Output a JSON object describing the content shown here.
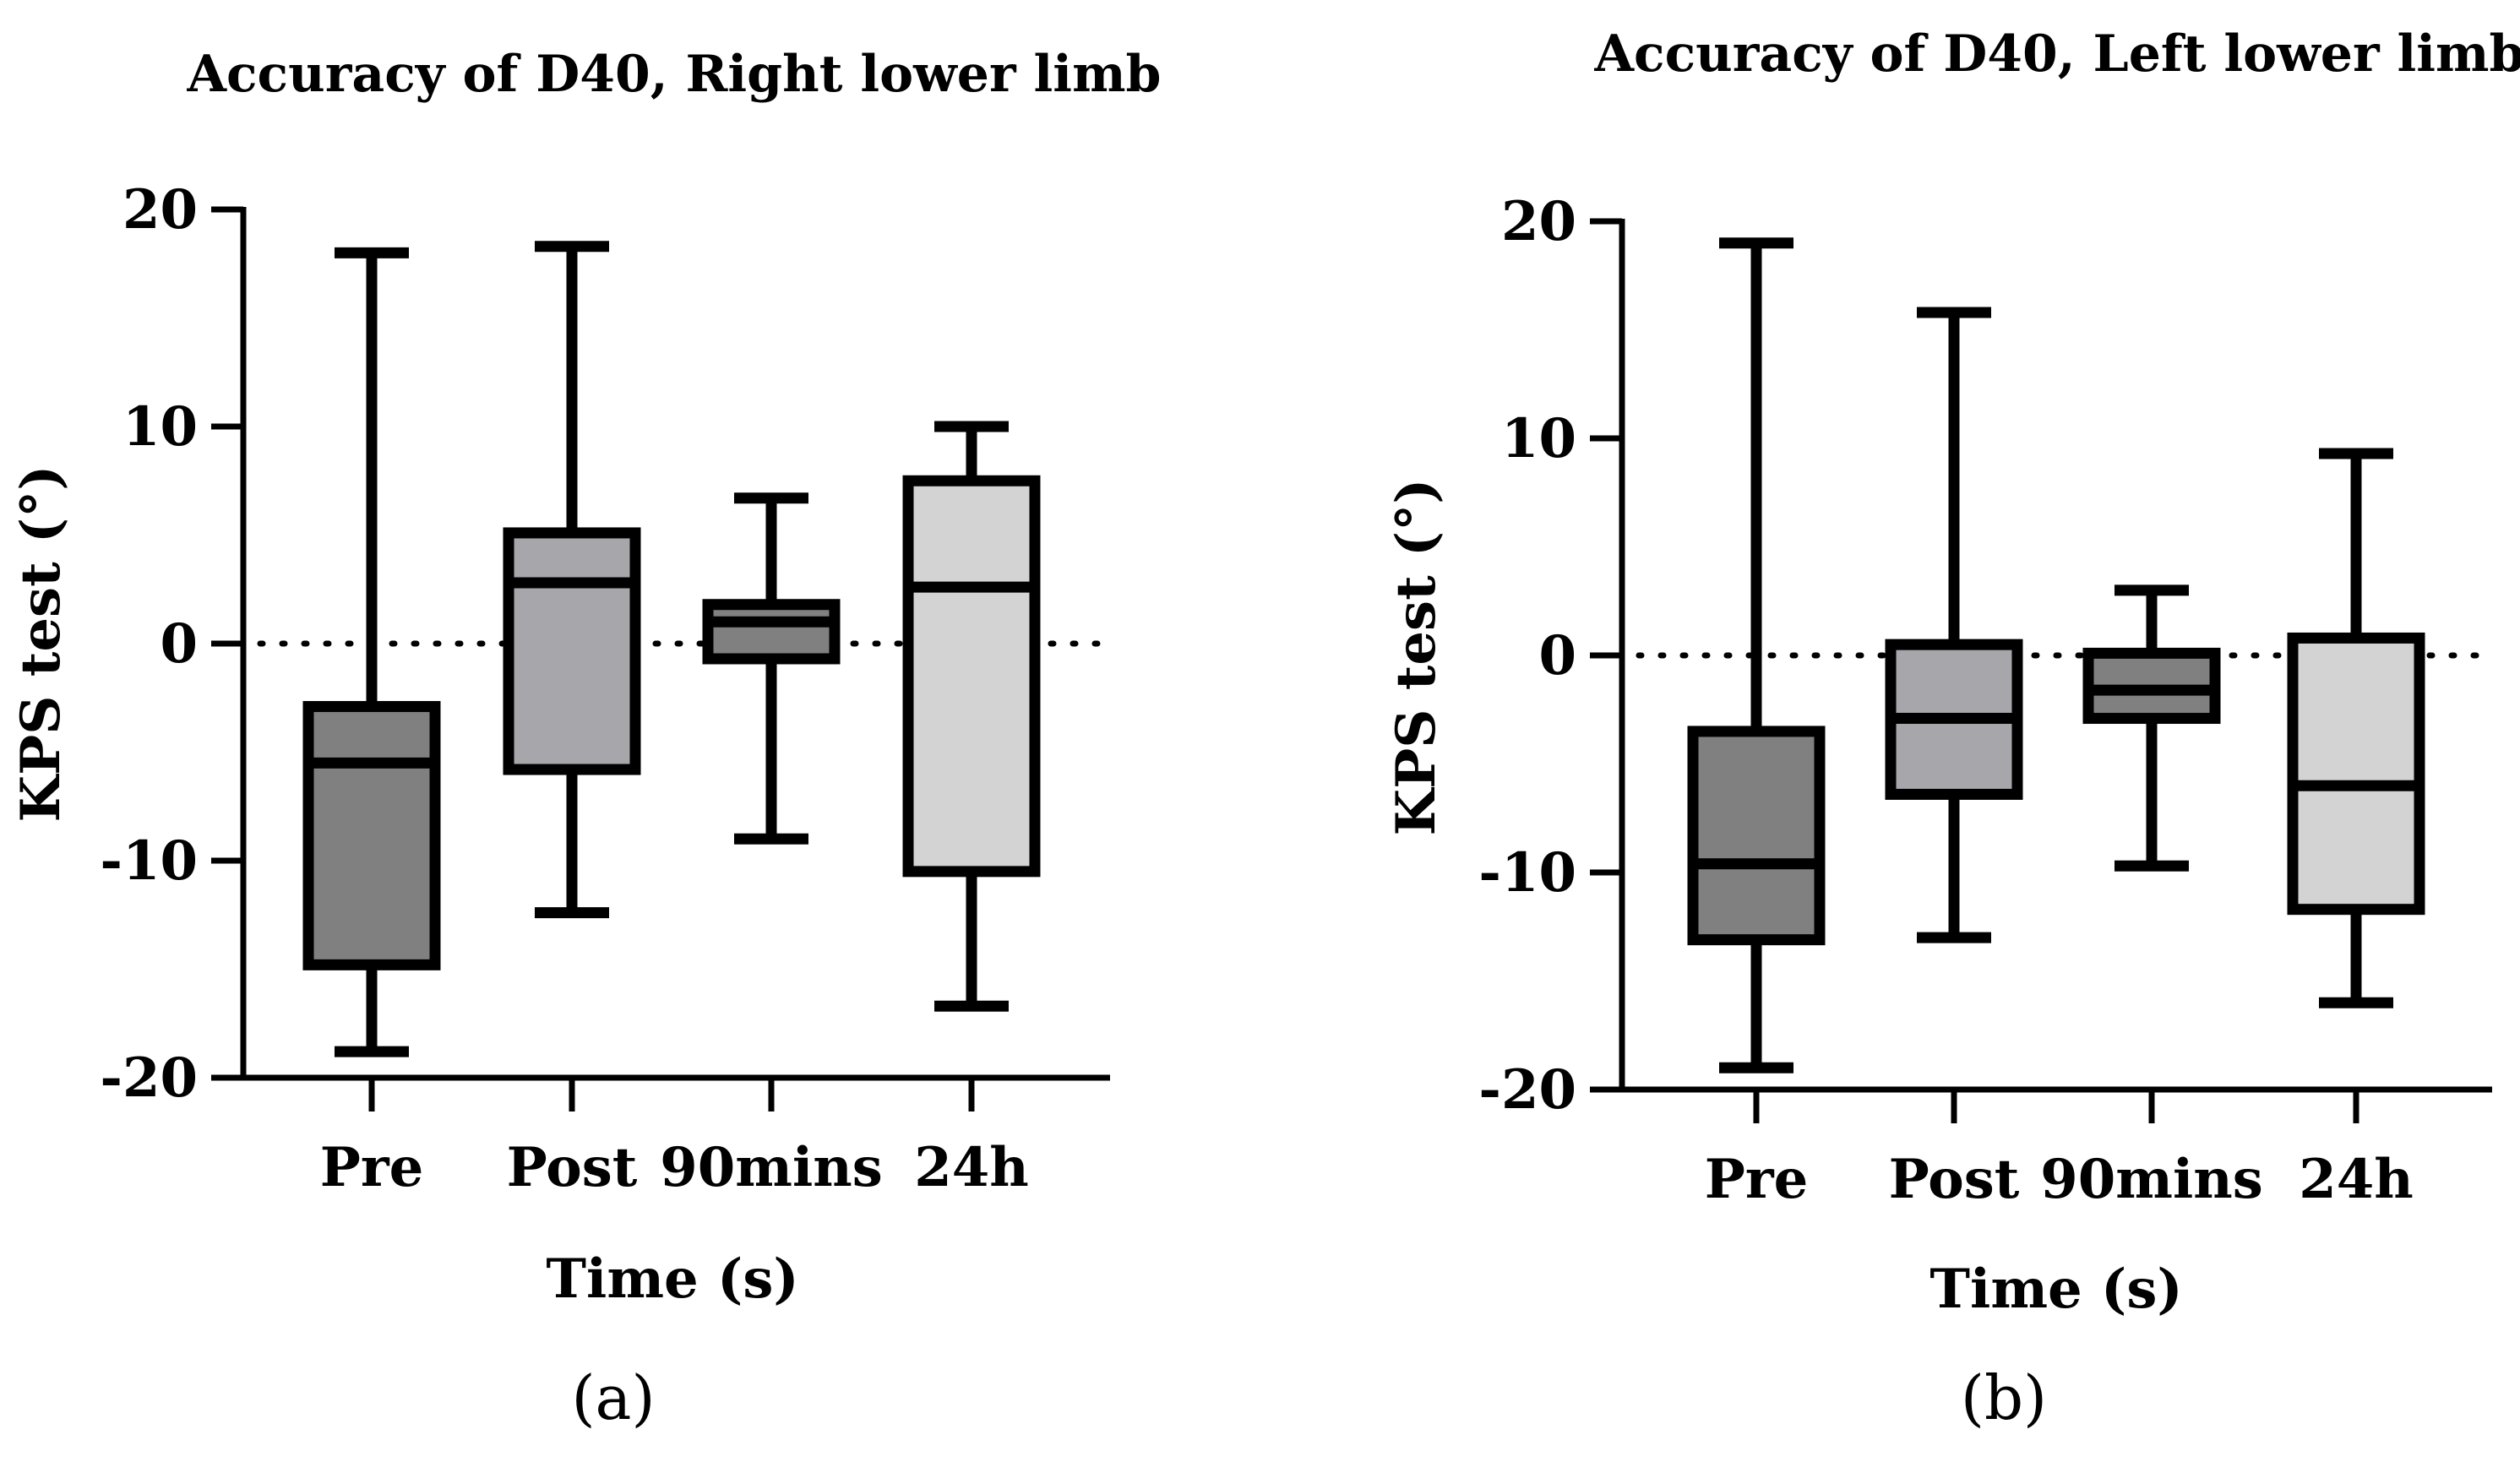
{
  "chart_data": [
    {
      "type": "box",
      "panel_label": "(a)",
      "title": "Accuracy of D40, Right lower limb",
      "xlabel": "Time (s)",
      "ylabel": "KPS test (°)",
      "ylim": [
        -20,
        20
      ],
      "yticks": [
        20,
        10,
        0,
        -10,
        -20
      ],
      "ytick_labels": [
        "20",
        "10",
        "0",
        "-10",
        "-20"
      ],
      "reference_line": 0,
      "categories": [
        "Pre",
        "Post",
        "90mins",
        "24h"
      ],
      "boxes": [
        {
          "label": "Pre",
          "whisker_low": -18.8,
          "q1": -14.8,
          "median": -5.5,
          "q3": -2.9,
          "whisker_high": 18.0,
          "color": "#808080"
        },
        {
          "label": "Post",
          "whisker_low": -12.4,
          "q1": -5.8,
          "median": 2.8,
          "q3": 5.1,
          "whisker_high": 18.3,
          "color": "#a6a6ab"
        },
        {
          "label": "90mins",
          "whisker_low": -9.0,
          "q1": -0.7,
          "median": 1.0,
          "q3": 1.8,
          "whisker_high": 6.7,
          "color": "#808080"
        },
        {
          "label": "24h",
          "whisker_low": -16.7,
          "q1": -10.5,
          "median": 2.6,
          "q3": 7.5,
          "whisker_high": 10.0,
          "color": "#d3d3d3"
        }
      ]
    },
    {
      "type": "box",
      "panel_label": "(b)",
      "title": "Accuracy of D40, Left lower limb",
      "xlabel": "Time (s)",
      "ylabel": "KPS test (°)",
      "ylim": [
        -20,
        20
      ],
      "yticks": [
        20,
        10,
        0,
        -10,
        -20
      ],
      "ytick_labels": [
        "20",
        "10",
        "0",
        "-10",
        "-20"
      ],
      "reference_line": 0,
      "categories": [
        "Pre",
        "Post",
        "90mins",
        "24h"
      ],
      "boxes": [
        {
          "label": "Pre",
          "whisker_low": -19.0,
          "q1": -13.1,
          "median": -9.6,
          "q3": -3.5,
          "whisker_high": 19.0,
          "color": "#808080"
        },
        {
          "label": "Post",
          "whisker_low": -13.0,
          "q1": -6.4,
          "median": -2.9,
          "q3": 0.5,
          "whisker_high": 15.8,
          "color": "#a6a6ab"
        },
        {
          "label": "90mins",
          "whisker_low": -9.7,
          "q1": -2.9,
          "median": -1.6,
          "q3": 0.1,
          "whisker_high": 3.0,
          "color": "#808080"
        },
        {
          "label": "24h",
          "whisker_low": -16.0,
          "q1": -11.7,
          "median": -6.0,
          "q3": 0.8,
          "whisker_high": 9.3,
          "color": "#d3d3d3"
        }
      ]
    }
  ]
}
